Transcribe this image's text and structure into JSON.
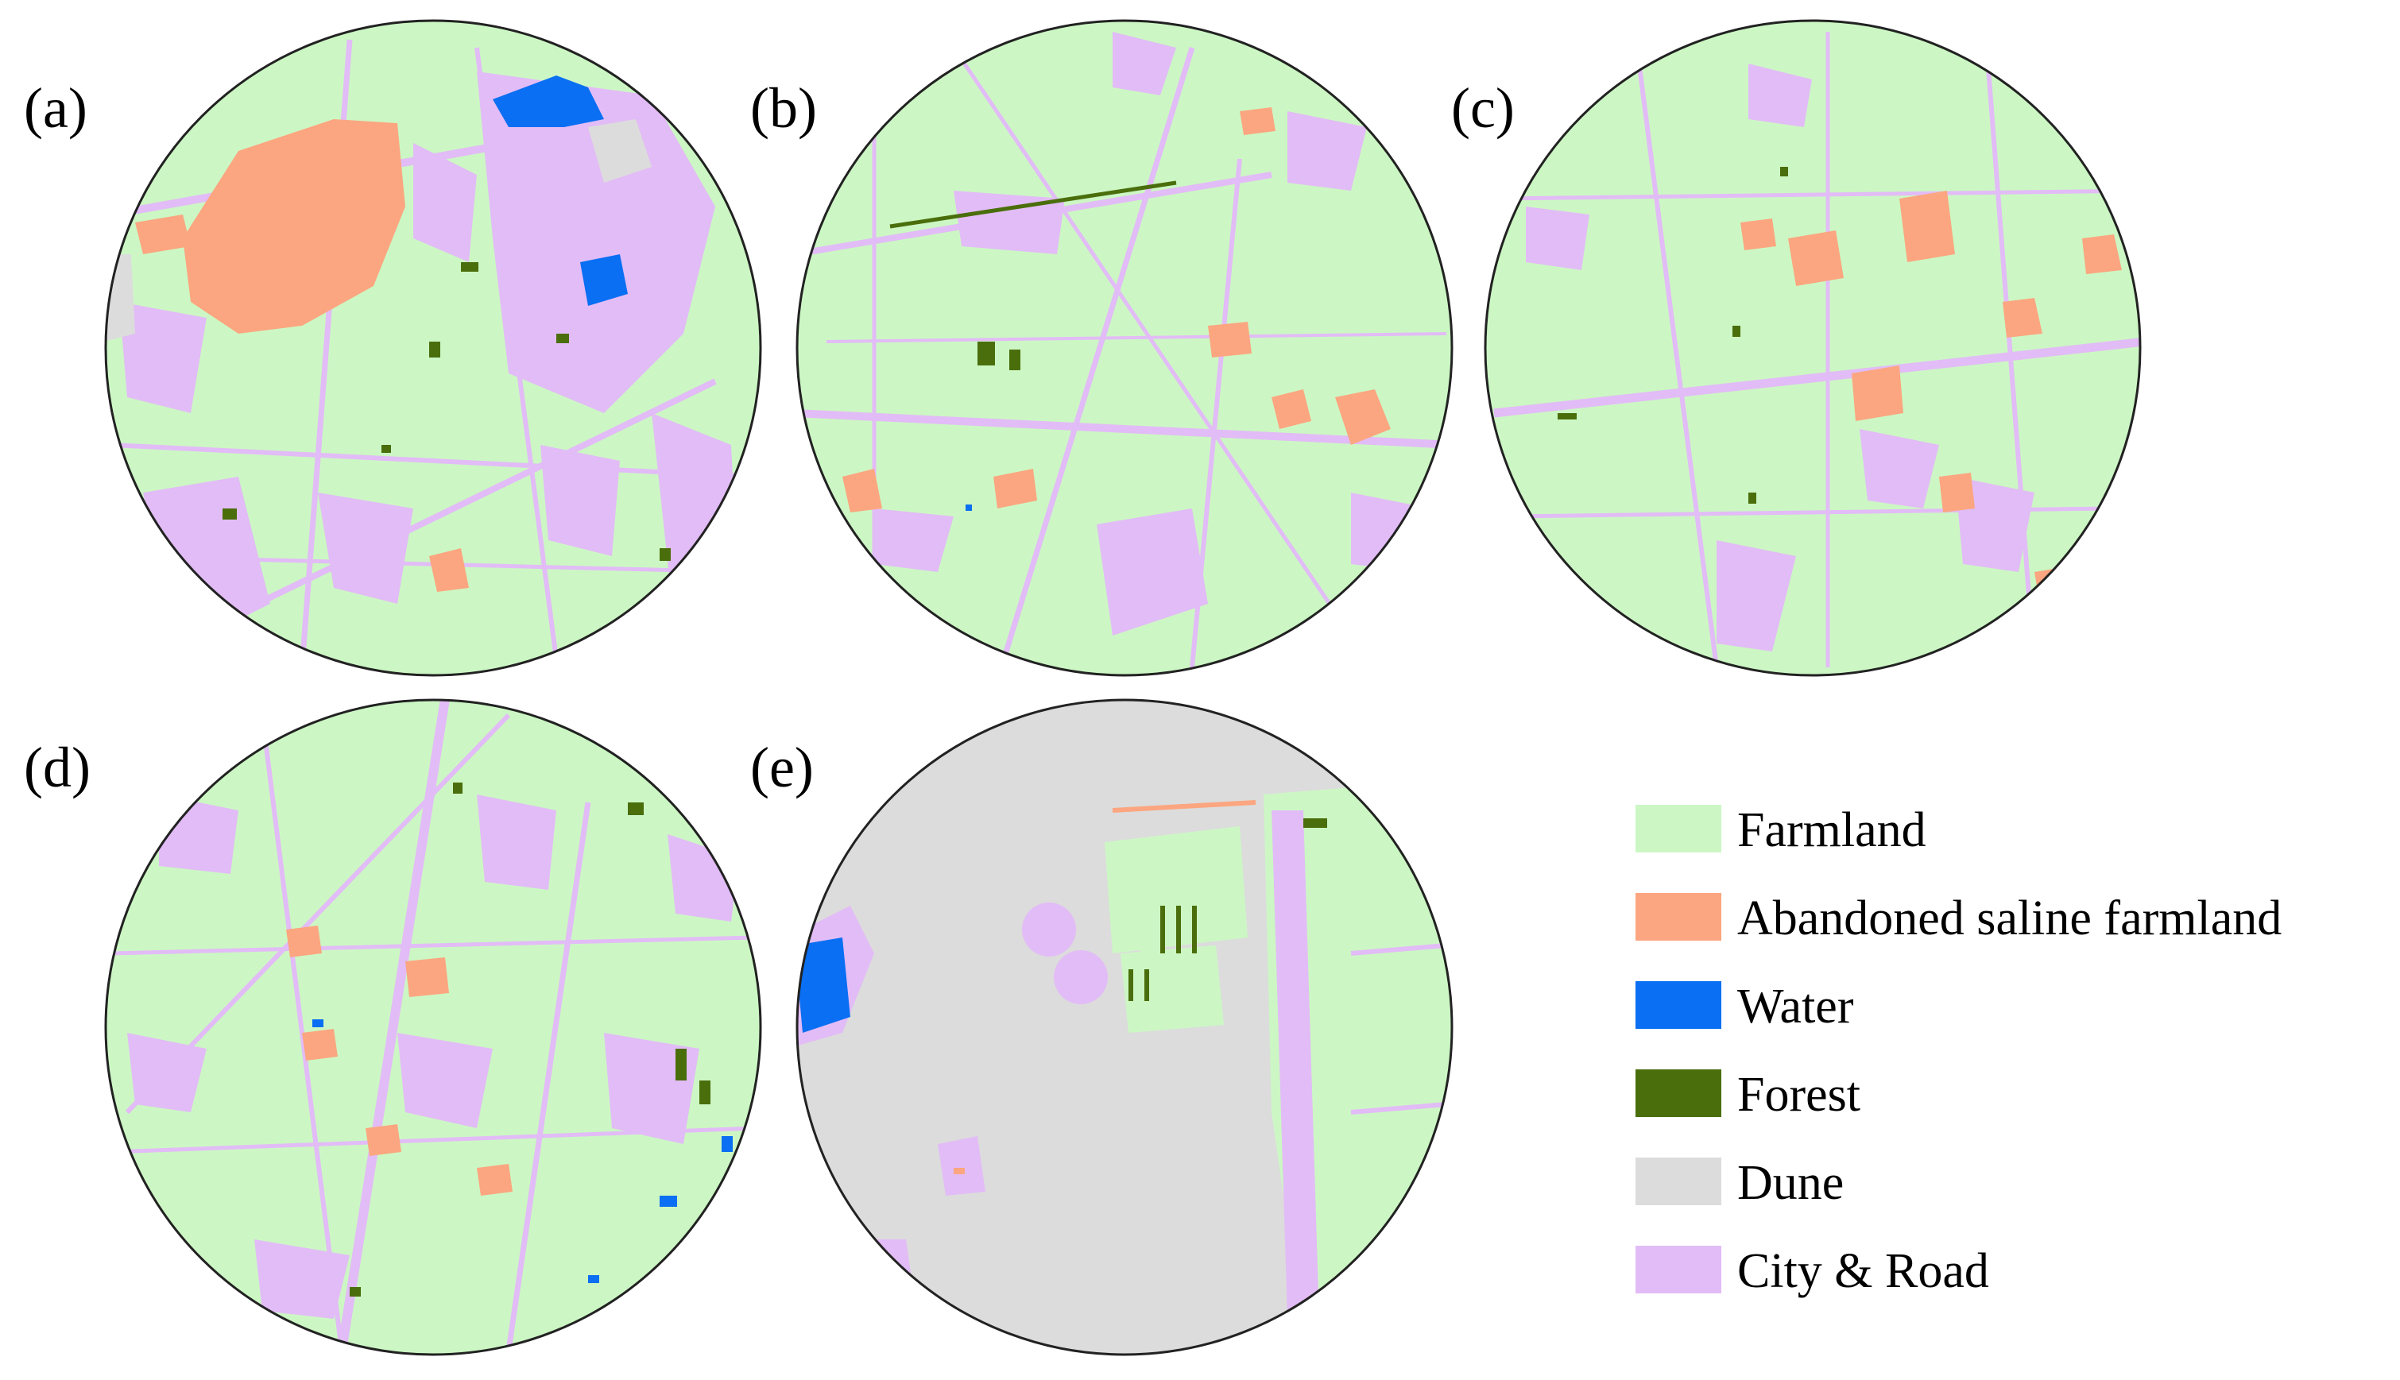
{
  "panels": [
    {
      "label": "(a)"
    },
    {
      "label": "(b)"
    },
    {
      "label": "(c)"
    },
    {
      "label": "(d)"
    },
    {
      "label": "(e)"
    }
  ],
  "legend": [
    {
      "label": "Farmland",
      "color": "#ccf7c4"
    },
    {
      "label": "Abandoned saline farmland",
      "color": "#fba680"
    },
    {
      "label": "Water",
      "color": "#0a6ff2"
    },
    {
      "label": "Forest",
      "color": "#4a6e0c"
    },
    {
      "label": "Dune",
      "color": "#dcdcdc"
    },
    {
      "label": "City & Road",
      "color": "#e2bcf6"
    }
  ]
}
